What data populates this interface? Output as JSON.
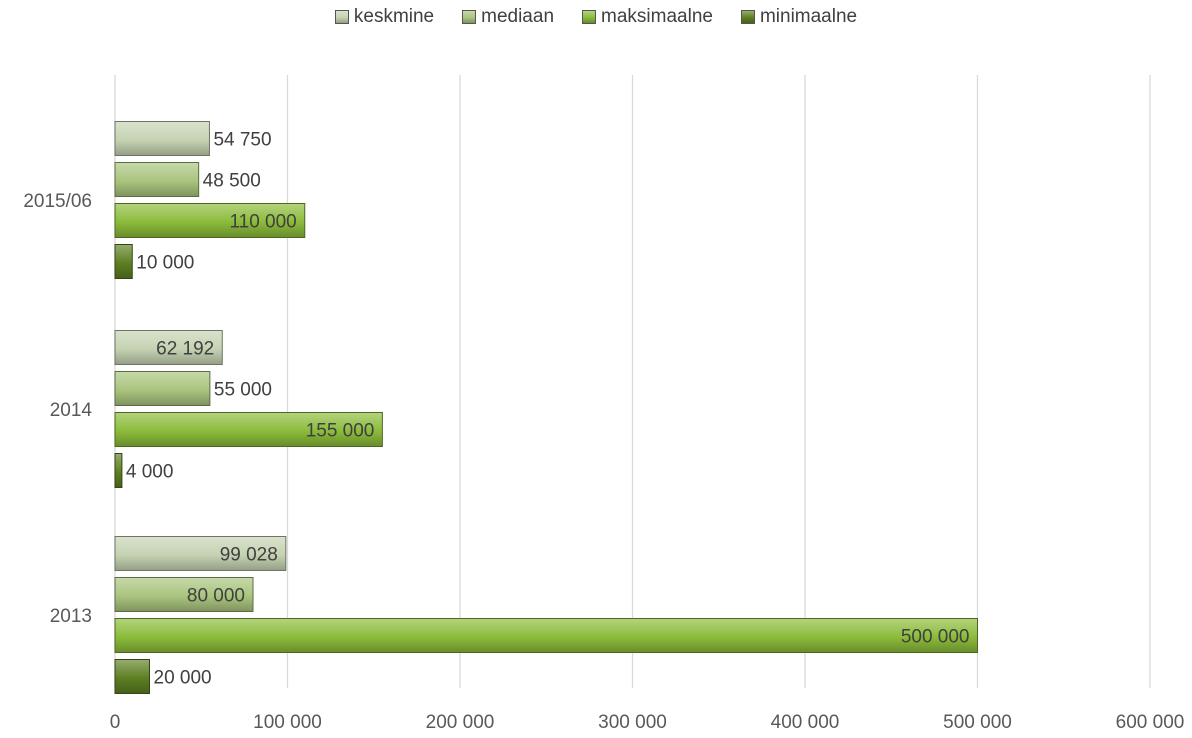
{
  "chart_data": {
    "type": "bar",
    "orientation": "horizontal",
    "categories": [
      "2013",
      "2014",
      "2015/06"
    ],
    "series": [
      {
        "name": "keskmine",
        "values": [
          99028,
          62192,
          54750
        ],
        "labels": [
          "99 028",
          "62 192",
          "54 750"
        ],
        "color": "#c5d2b2"
      },
      {
        "name": "mediaan",
        "values": [
          80000,
          55000,
          48500
        ],
        "labels": [
          "80 000",
          "55 000",
          "48 500"
        ],
        "color": "#a9c47e"
      },
      {
        "name": "maksimaalne",
        "values": [
          500000,
          155000,
          110000
        ],
        "labels": [
          "500 000",
          "155 000",
          "110 000"
        ],
        "color": "#8bbb3a"
      },
      {
        "name": "minimaalne",
        "values": [
          20000,
          4000,
          10000
        ],
        "labels": [
          "20 000",
          "4 000",
          "10 000"
        ],
        "color": "#5d7f22"
      }
    ],
    "xlim": [
      0,
      600000
    ],
    "xticks": [
      0,
      100000,
      200000,
      300000,
      400000,
      500000,
      600000
    ],
    "xtick_labels": [
      "0",
      "100 000",
      "200 000",
      "300 000",
      "400 000",
      "500 000",
      "600 000"
    ],
    "grid": "vertical",
    "legend_position": "top"
  }
}
